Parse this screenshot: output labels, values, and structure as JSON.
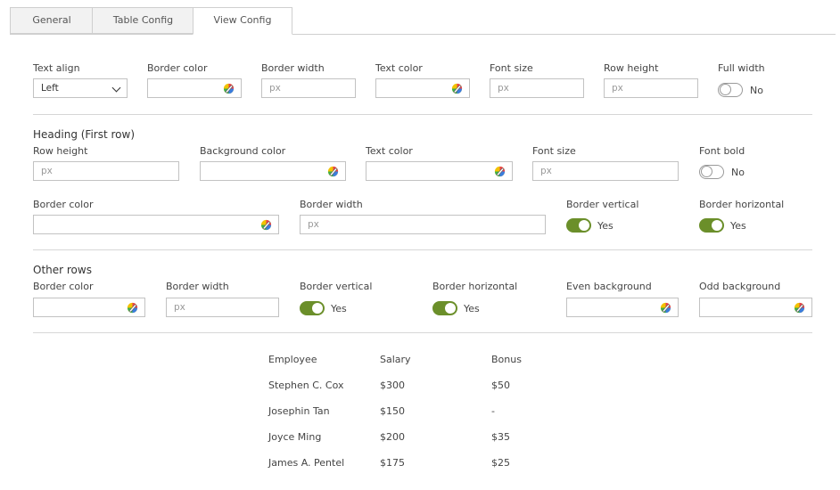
{
  "tabs": [
    {
      "label": "General"
    },
    {
      "label": "Table Config"
    },
    {
      "label": "View Config"
    }
  ],
  "view": {
    "text_align": {
      "label": "Text align",
      "value": "Left"
    },
    "border_color": {
      "label": "Border color"
    },
    "border_width": {
      "label": "Border width",
      "placeholder": "px"
    },
    "text_color": {
      "label": "Text color"
    },
    "font_size": {
      "label": "Font size",
      "placeholder": "px"
    },
    "row_height": {
      "label": "Row height",
      "placeholder": "px"
    },
    "full_width": {
      "label": "Full width",
      "state": "No"
    }
  },
  "heading": {
    "title": "Heading (First row)",
    "row_height": {
      "label": "Row height",
      "placeholder": "px"
    },
    "background_color": {
      "label": "Background color"
    },
    "text_color": {
      "label": "Text color"
    },
    "font_size": {
      "label": "Font size",
      "placeholder": "px"
    },
    "font_bold": {
      "label": "Font bold",
      "state": "No"
    },
    "border_color": {
      "label": "Border color"
    },
    "border_width": {
      "label": "Border width",
      "placeholder": "px"
    },
    "border_vertical": {
      "label": "Border vertical",
      "state": "Yes"
    },
    "border_horizontal": {
      "label": "Border horizontal",
      "state": "Yes"
    }
  },
  "other_rows": {
    "title": "Other rows",
    "border_color": {
      "label": "Border color"
    },
    "border_width": {
      "label": "Border width",
      "placeholder": "px"
    },
    "border_vertical": {
      "label": "Border vertical",
      "state": "Yes"
    },
    "border_horizontal": {
      "label": "Border horizontal",
      "state": "Yes"
    },
    "even_background": {
      "label": "Even background"
    },
    "odd_background": {
      "label": "Odd background"
    }
  },
  "preview": {
    "headers": [
      "Employee",
      "Salary",
      "Bonus"
    ],
    "rows": [
      [
        "Stephen C. Cox",
        "$300",
        "$50"
      ],
      [
        "Josephin Tan",
        "$150",
        "-"
      ],
      [
        "Joyce Ming",
        "$200",
        "$35"
      ],
      [
        "James A. Pentel",
        "$175",
        "$25"
      ]
    ]
  },
  "colors": {
    "toggle_on": "#6b8f2a",
    "border": "#c2c2c2"
  }
}
